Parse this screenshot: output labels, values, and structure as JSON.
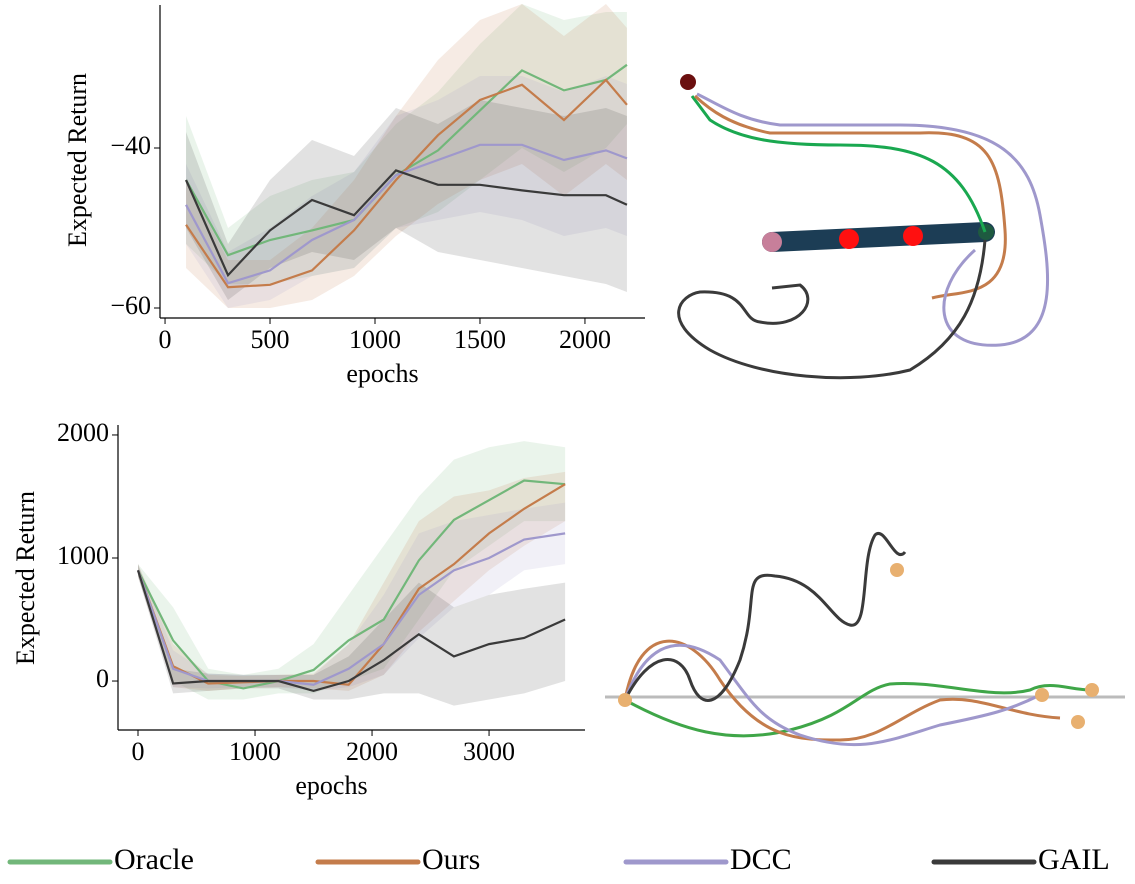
{
  "chart_data": [
    {
      "type": "line",
      "ylabel": "Expected Return",
      "xlabel": "epochs",
      "x": [
        100,
        300,
        500,
        700,
        900,
        1100,
        1300,
        1500,
        1700,
        1900,
        2100,
        2200
      ],
      "xlim": [
        -24,
        2286
      ],
      "ylim": [
        -61.25,
        -22.125
      ],
      "xticks": [
        0,
        500,
        1000,
        1500,
        2000
      ],
      "yticks": [
        {
          "value": -60,
          "label": "−60"
        },
        {
          "value": -40,
          "label": "−40"
        }
      ],
      "series": [
        {
          "name": "Oracle",
          "color": "#72b77a",
          "values": [
            -44,
            -53.4,
            -51.5,
            -50.3,
            -49,
            -43.4,
            -40.3,
            -35.3,
            -30.3,
            -32.8,
            -31.5,
            -29.6
          ],
          "lower": [
            -52,
            -57,
            -57,
            -56,
            -55,
            -50,
            -48,
            -44,
            -40,
            -43,
            -40,
            -37
          ],
          "upper": [
            -36,
            -50,
            -46,
            -44,
            -43,
            -37,
            -33,
            -27,
            -22,
            -24,
            -23,
            -23
          ]
        },
        {
          "name": "Ours",
          "color": "#c47c4b",
          "values": [
            -49.6,
            -57.4,
            -57.1,
            -55.3,
            -50.3,
            -44,
            -38.4,
            -34,
            -32.1,
            -36.5,
            -31.5,
            -34.6
          ],
          "lower": [
            -55,
            -60,
            -60,
            -59,
            -56,
            -51,
            -47,
            -44,
            -42,
            -46,
            -42,
            -44
          ],
          "upper": [
            -44,
            -54,
            -54,
            -50,
            -44,
            -36,
            -29,
            -24,
            -22,
            -26,
            -22,
            -25
          ]
        },
        {
          "name": "DCC",
          "color": "#9f98cc",
          "values": [
            -47.1,
            -56.9,
            -55.3,
            -51.5,
            -49,
            -43.4,
            -41.5,
            -39.6,
            -39.6,
            -41.5,
            -40.3,
            -41.3
          ],
          "lower": [
            -52,
            -60,
            -59,
            -56,
            -55,
            -50,
            -49,
            -48,
            -49,
            -51,
            -50,
            -51
          ],
          "upper": [
            -42,
            -53,
            -50,
            -46,
            -43,
            -36,
            -34,
            -31,
            -31,
            -33,
            -31,
            -32
          ]
        },
        {
          "name": "GAIL",
          "color": "#3a3a3a",
          "values": [
            -44,
            -55.9,
            -50.3,
            -46.5,
            -48.4,
            -42.8,
            -44.6,
            -44.6,
            -45.3,
            -45.9,
            -45.9,
            -47.1
          ],
          "lower": [
            -50,
            -59,
            -55,
            -53,
            -54,
            -50,
            -53,
            -54,
            -55,
            -56,
            -57,
            -58
          ],
          "upper": [
            -38,
            -52,
            -44,
            -39,
            -41,
            -35,
            -37,
            -34,
            -35,
            -36,
            -35,
            -36
          ]
        }
      ]
    },
    {
      "type": "line",
      "ylabel": "Expected Return",
      "xlabel": "epochs",
      "x": [
        0,
        300,
        600,
        900,
        1200,
        1500,
        1800,
        2100,
        2400,
        2700,
        3000,
        3300,
        3650
      ],
      "xlim": [
        -171,
        3820
      ],
      "ylim": [
        -398,
        2081
      ],
      "xticks": [
        0,
        1000,
        2000,
        3000
      ],
      "yticks": [
        0,
        1000,
        2000
      ],
      "series": [
        {
          "color": "#72b77a",
          "values": [
            900,
            330,
            0,
            -60,
            0,
            90,
            330,
            500,
            980,
            1310,
            1470,
            1630,
            1600
          ],
          "lower": [
            850,
            0,
            -150,
            -150,
            -100,
            -100,
            0,
            100,
            500,
            900,
            1100,
            1300,
            1300
          ],
          "upper": [
            950,
            600,
            100,
            50,
            100,
            300,
            700,
            1100,
            1500,
            1800,
            1900,
            1950,
            1900
          ]
        },
        {
          "color": "#c47c4b",
          "values": [
            900,
            120,
            -20,
            -10,
            0,
            0,
            -30,
            300,
            750,
            950,
            1200,
            1400,
            1600
          ],
          "lower": [
            850,
            -50,
            -80,
            -60,
            -50,
            -60,
            -80,
            50,
            400,
            650,
            900,
            1100,
            1300
          ],
          "upper": [
            950,
            300,
            50,
            40,
            50,
            60,
            300,
            800,
            1300,
            1500,
            1550,
            1650,
            1700
          ]
        },
        {
          "color": "#9f98cc",
          "values": [
            900,
            100,
            0,
            0,
            0,
            -30,
            100,
            300,
            700,
            900,
            1000,
            1150,
            1200
          ],
          "lower": [
            850,
            -50,
            -60,
            -50,
            -50,
            -80,
            -50,
            50,
            350,
            600,
            700,
            900,
            950
          ],
          "upper": [
            950,
            250,
            60,
            50,
            50,
            50,
            300,
            700,
            1200,
            1300,
            1350,
            1400,
            1450
          ]
        },
        {
          "color": "#3a3a3a",
          "values": [
            900,
            -20,
            0,
            0,
            0,
            -80,
            0,
            170,
            380,
            200,
            300,
            350,
            500
          ],
          "lower": [
            850,
            -100,
            -80,
            -60,
            -60,
            -150,
            -150,
            -100,
            -100,
            -200,
            -150,
            -100,
            0
          ],
          "upper": [
            950,
            100,
            60,
            50,
            50,
            50,
            200,
            500,
            800,
            600,
            700,
            750,
            800
          ]
        }
      ]
    }
  ]
}
